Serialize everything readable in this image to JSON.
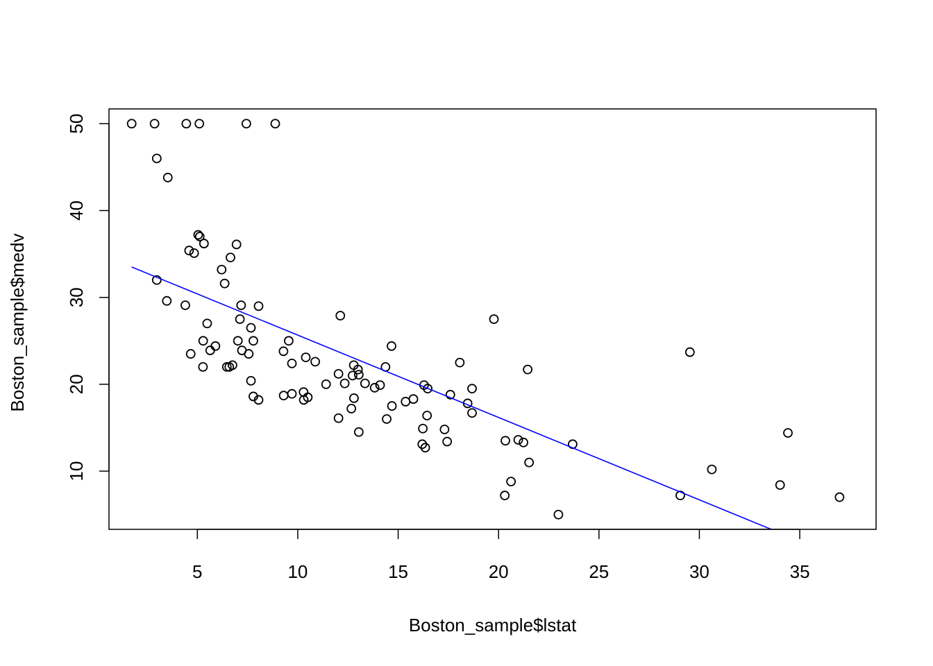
{
  "chart_data": {
    "type": "scatter",
    "title": "",
    "xlabel": "Boston_sample$lstat",
    "ylabel": "Boston_sample$medv",
    "xlim": [
      0.6,
      38.8
    ],
    "ylim": [
      3.3,
      51.7
    ],
    "xticks": [
      5,
      10,
      15,
      20,
      25,
      30,
      35
    ],
    "yticks": [
      10,
      20,
      30,
      40,
      50
    ],
    "x_tick_labels": [
      "5",
      "10",
      "15",
      "20",
      "25",
      "30",
      "35"
    ],
    "y_tick_labels": [
      "10",
      "20",
      "30",
      "40",
      "50"
    ],
    "grid": false,
    "legend": "none",
    "colors": {
      "points": "#000000",
      "regression_line": "#0000ff",
      "frame": "#000000",
      "background": "#ffffff"
    },
    "points": [
      {
        "x": 1.73,
        "y": 50.0
      },
      {
        "x": 2.87,
        "y": 50.0
      },
      {
        "x": 4.45,
        "y": 50.0
      },
      {
        "x": 5.1,
        "y": 50.0
      },
      {
        "x": 7.44,
        "y": 50.0
      },
      {
        "x": 8.88,
        "y": 50.0
      },
      {
        "x": 2.98,
        "y": 46.0
      },
      {
        "x": 3.53,
        "y": 43.8
      },
      {
        "x": 5.04,
        "y": 37.2
      },
      {
        "x": 5.12,
        "y": 37.0
      },
      {
        "x": 5.33,
        "y": 36.2
      },
      {
        "x": 6.95,
        "y": 36.1
      },
      {
        "x": 4.59,
        "y": 35.4
      },
      {
        "x": 4.84,
        "y": 35.1
      },
      {
        "x": 6.65,
        "y": 34.6
      },
      {
        "x": 6.21,
        "y": 33.2
      },
      {
        "x": 6.36,
        "y": 31.6
      },
      {
        "x": 2.98,
        "y": 32.0
      },
      {
        "x": 3.48,
        "y": 29.6
      },
      {
        "x": 4.4,
        "y": 29.1
      },
      {
        "x": 7.18,
        "y": 29.1
      },
      {
        "x": 8.05,
        "y": 29.0
      },
      {
        "x": 12.12,
        "y": 27.9
      },
      {
        "x": 19.77,
        "y": 27.5
      },
      {
        "x": 7.12,
        "y": 27.5
      },
      {
        "x": 5.49,
        "y": 27.0
      },
      {
        "x": 7.67,
        "y": 26.5
      },
      {
        "x": 5.29,
        "y": 25.0
      },
      {
        "x": 5.9,
        "y": 24.4
      },
      {
        "x": 7.02,
        "y": 25.0
      },
      {
        "x": 7.79,
        "y": 25.0
      },
      {
        "x": 9.55,
        "y": 25.0
      },
      {
        "x": 14.67,
        "y": 24.4
      },
      {
        "x": 5.64,
        "y": 23.9
      },
      {
        "x": 4.67,
        "y": 23.5
      },
      {
        "x": 7.22,
        "y": 23.9
      },
      {
        "x": 7.56,
        "y": 23.5
      },
      {
        "x": 9.29,
        "y": 23.8
      },
      {
        "x": 10.4,
        "y": 23.1
      },
      {
        "x": 10.87,
        "y": 22.6
      },
      {
        "x": 9.71,
        "y": 22.4
      },
      {
        "x": 29.53,
        "y": 23.7
      },
      {
        "x": 18.07,
        "y": 22.5
      },
      {
        "x": 12.79,
        "y": 22.2
      },
      {
        "x": 5.28,
        "y": 22.0
      },
      {
        "x": 6.47,
        "y": 22.0
      },
      {
        "x": 6.59,
        "y": 22.0
      },
      {
        "x": 6.75,
        "y": 22.2
      },
      {
        "x": 14.37,
        "y": 22.0
      },
      {
        "x": 21.45,
        "y": 21.7
      },
      {
        "x": 13.0,
        "y": 21.7
      },
      {
        "x": 12.03,
        "y": 21.2
      },
      {
        "x": 12.73,
        "y": 21.0
      },
      {
        "x": 13.04,
        "y": 21.1
      },
      {
        "x": 7.67,
        "y": 20.4
      },
      {
        "x": 11.41,
        "y": 20.0
      },
      {
        "x": 12.34,
        "y": 20.1
      },
      {
        "x": 13.35,
        "y": 20.1
      },
      {
        "x": 14.1,
        "y": 19.9
      },
      {
        "x": 13.83,
        "y": 19.6
      },
      {
        "x": 16.29,
        "y": 19.9
      },
      {
        "x": 16.47,
        "y": 19.5
      },
      {
        "x": 18.68,
        "y": 19.5
      },
      {
        "x": 10.29,
        "y": 19.1
      },
      {
        "x": 9.3,
        "y": 18.7
      },
      {
        "x": 9.71,
        "y": 18.9
      },
      {
        "x": 7.79,
        "y": 18.6
      },
      {
        "x": 8.05,
        "y": 18.2
      },
      {
        "x": 10.3,
        "y": 18.2
      },
      {
        "x": 10.5,
        "y": 18.5
      },
      {
        "x": 12.8,
        "y": 18.4
      },
      {
        "x": 15.76,
        "y": 18.3
      },
      {
        "x": 15.37,
        "y": 18.0
      },
      {
        "x": 17.6,
        "y": 18.8
      },
      {
        "x": 18.46,
        "y": 17.8
      },
      {
        "x": 14.69,
        "y": 17.5
      },
      {
        "x": 12.67,
        "y": 17.2
      },
      {
        "x": 18.68,
        "y": 16.7
      },
      {
        "x": 12.03,
        "y": 16.1
      },
      {
        "x": 14.43,
        "y": 16.0
      },
      {
        "x": 16.44,
        "y": 16.4
      },
      {
        "x": 16.23,
        "y": 14.9
      },
      {
        "x": 17.31,
        "y": 14.8
      },
      {
        "x": 13.04,
        "y": 14.5
      },
      {
        "x": 17.44,
        "y": 13.4
      },
      {
        "x": 20.34,
        "y": 13.5
      },
      {
        "x": 20.98,
        "y": 13.6
      },
      {
        "x": 21.24,
        "y": 13.3
      },
      {
        "x": 16.2,
        "y": 13.1
      },
      {
        "x": 16.35,
        "y": 12.7
      },
      {
        "x": 23.69,
        "y": 13.1
      },
      {
        "x": 21.52,
        "y": 11.0
      },
      {
        "x": 30.62,
        "y": 10.2
      },
      {
        "x": 34.41,
        "y": 14.4
      },
      {
        "x": 20.62,
        "y": 8.8
      },
      {
        "x": 34.02,
        "y": 8.4
      },
      {
        "x": 20.31,
        "y": 7.2
      },
      {
        "x": 29.05,
        "y": 7.2
      },
      {
        "x": 36.98,
        "y": 7.0
      },
      {
        "x": 22.98,
        "y": 5.0
      }
    ],
    "regression_line": {
      "x": [
        1.73,
        33.58
      ],
      "y": [
        33.5,
        3.3
      ]
    }
  }
}
